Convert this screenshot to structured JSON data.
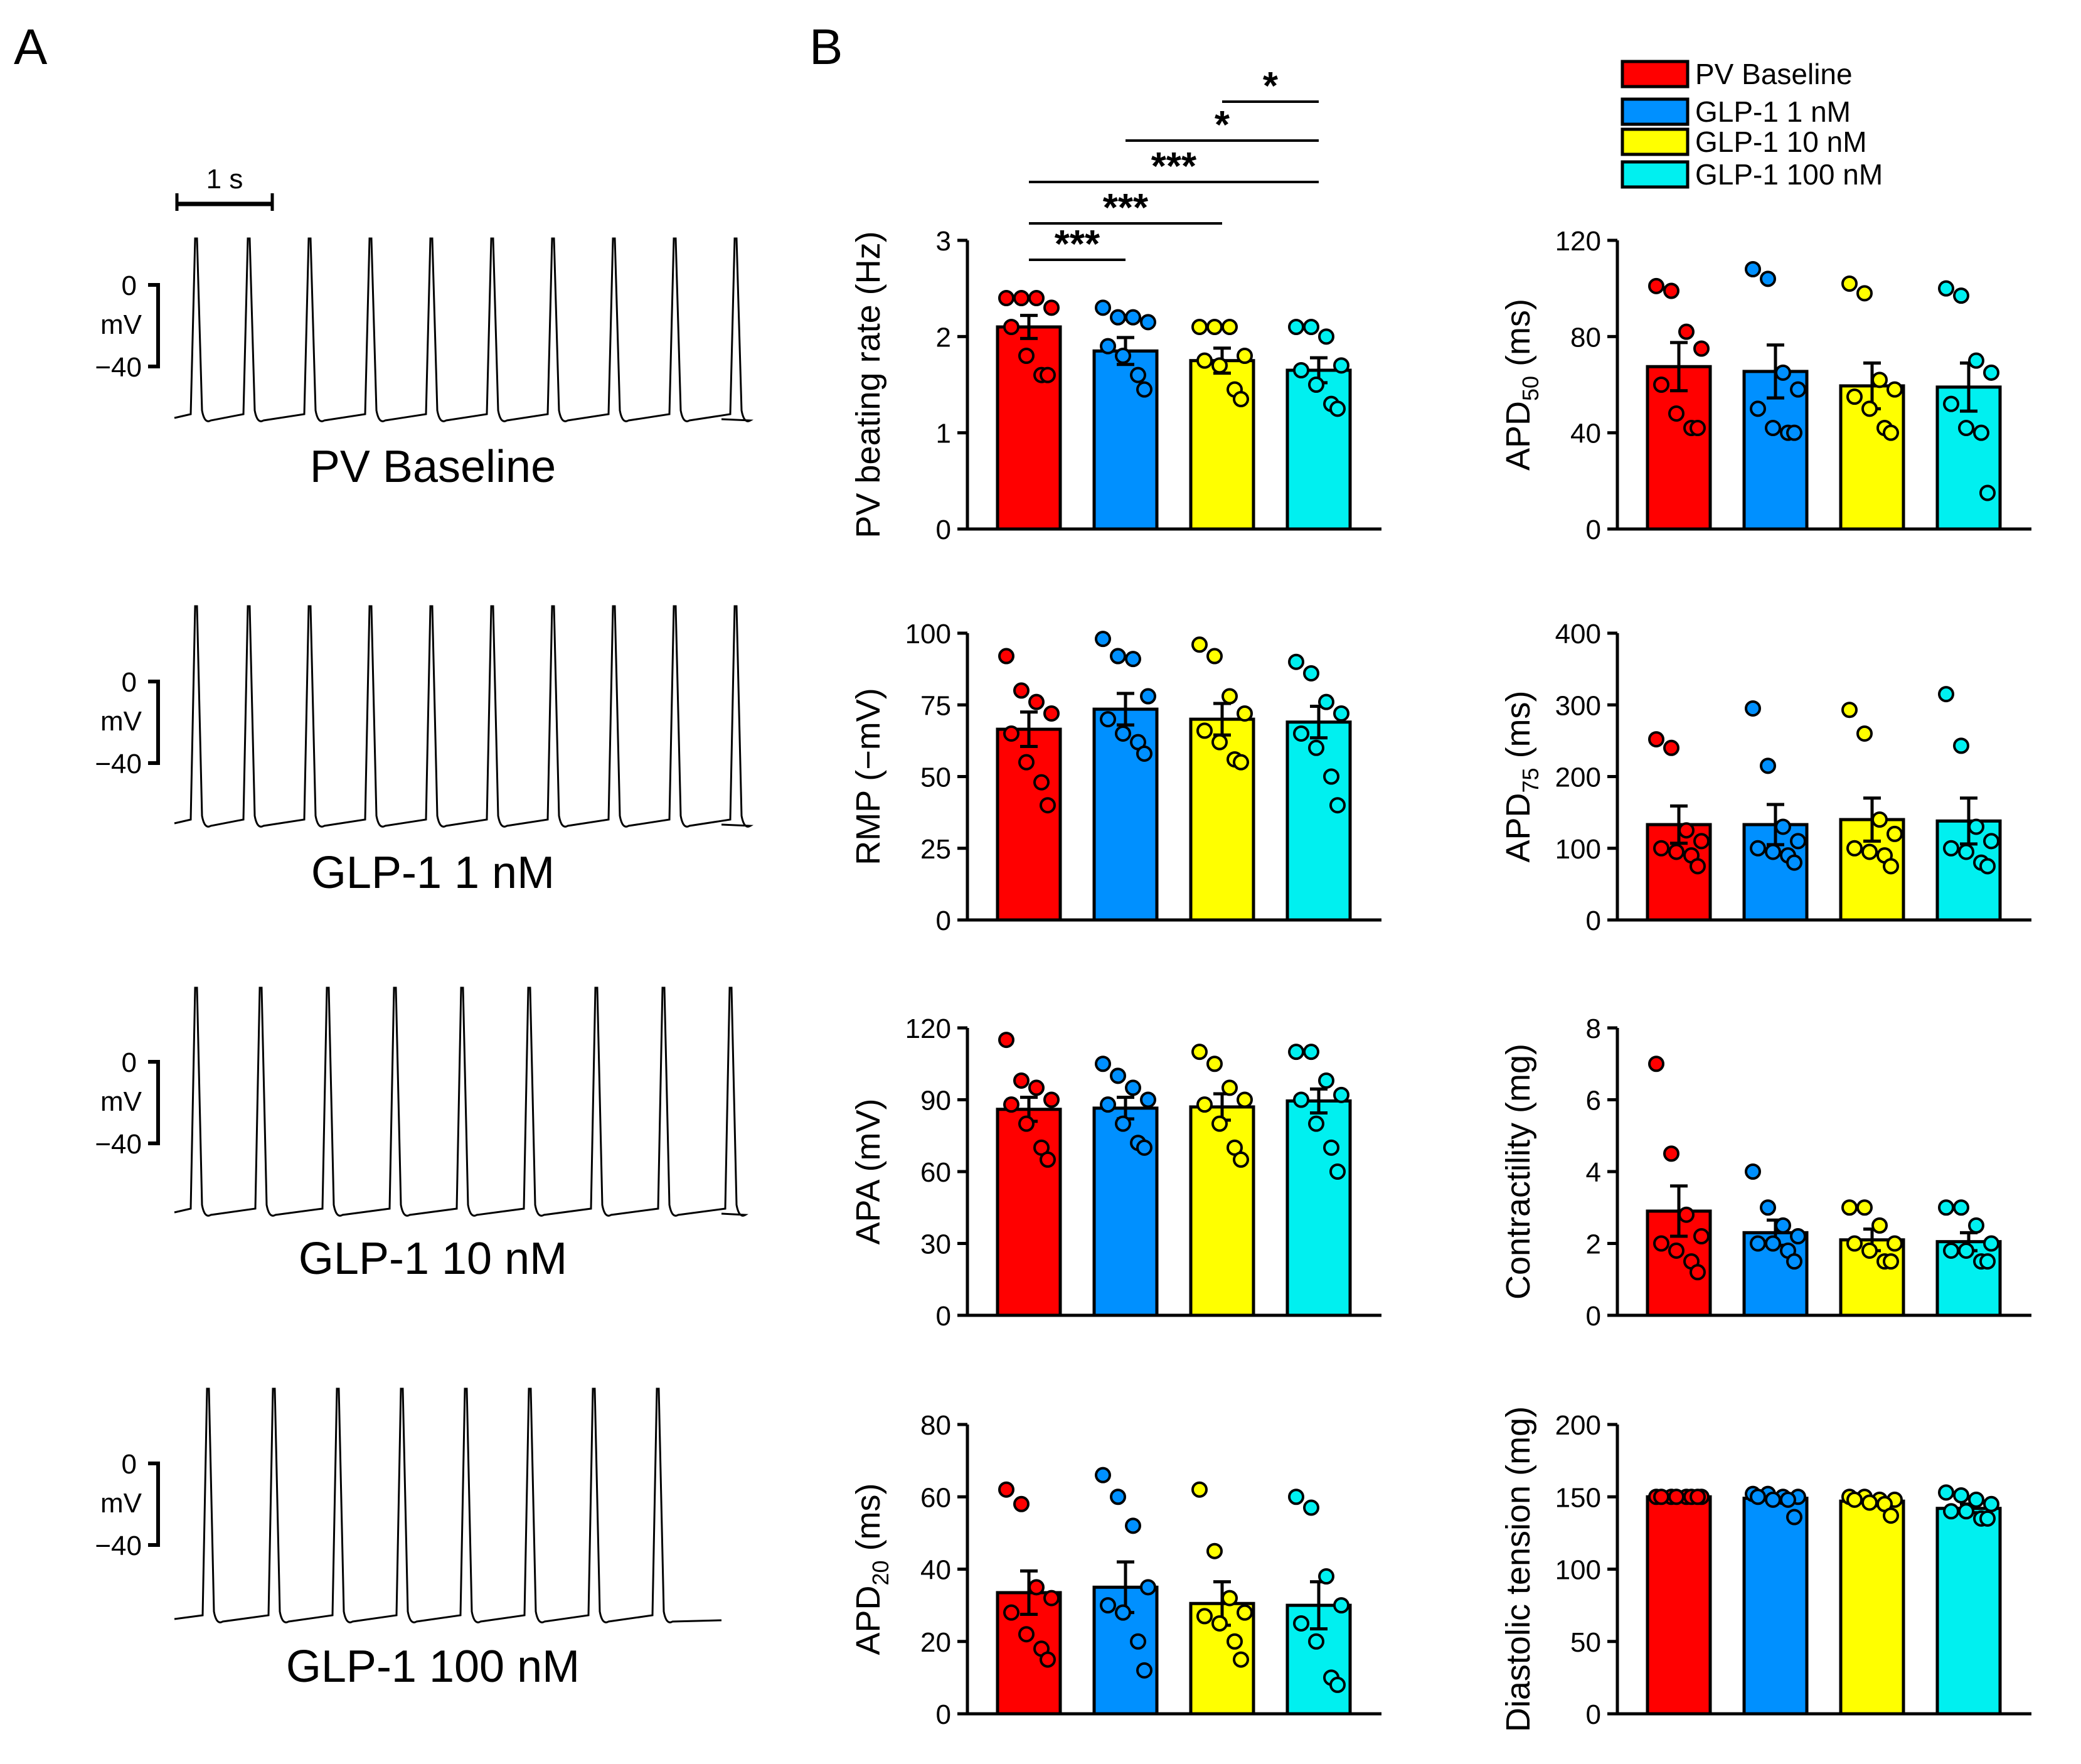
{
  "panels": {
    "a": "A",
    "b": "B"
  },
  "time_scale": "1 s",
  "mv_scale": {
    "top": "0",
    "unit": "mV",
    "bottom": "−40"
  },
  "groups": [
    "PV Baseline",
    "GLP-1 1 nM",
    "GLP-1 10 nM",
    "GLP-1 100 nM"
  ],
  "colors": [
    "#ff0000",
    "#0090ff",
    "#ffff00",
    "#00f0f0"
  ],
  "traces": [
    {
      "label": "PV Baseline",
      "spikes": 10
    },
    {
      "label": "GLP-1 1 nM",
      "spikes": 10
    },
    {
      "label": "GLP-1 10 nM",
      "spikes": 9
    },
    {
      "label": "GLP-1 100 nM",
      "spikes": 8
    }
  ],
  "significance": [
    {
      "from": 0,
      "to": 1,
      "label": "***"
    },
    {
      "from": 0,
      "to": 2,
      "label": "***"
    },
    {
      "from": 0,
      "to": 3,
      "label": "***"
    },
    {
      "from": 1,
      "to": 3,
      "label": "*"
    },
    {
      "from": 2,
      "to": 3,
      "label": "*"
    }
  ],
  "chart_data": [
    {
      "type": "bar",
      "id": "rate",
      "ylabel_main": "PV beating rate (Hz)",
      "ylabel_sub": "",
      "ylabel_tail": "",
      "ylim": [
        0,
        3
      ],
      "ticks": [
        "0",
        "1",
        "2",
        "3"
      ],
      "categories": [
        "PV Baseline",
        "GLP-1 1 nM",
        "GLP-1 10 nM",
        "GLP-1 100 nM"
      ],
      "values": [
        2.1,
        1.85,
        1.75,
        1.65
      ],
      "sem": [
        0.12,
        0.14,
        0.13,
        0.13
      ],
      "points": [
        [
          2.4,
          2.4,
          2.4,
          2.3,
          2.1,
          1.8,
          1.6,
          1.6
        ],
        [
          2.3,
          2.2,
          2.2,
          2.15,
          1.9,
          1.8,
          1.6,
          1.45
        ],
        [
          2.1,
          2.1,
          2.1,
          1.8,
          1.75,
          1.7,
          1.45,
          1.35
        ],
        [
          2.1,
          2.1,
          2.0,
          1.7,
          1.65,
          1.5,
          1.3,
          1.25
        ]
      ]
    },
    {
      "type": "bar",
      "id": "apd50",
      "ylabel_main": "APD",
      "ylabel_sub": "50",
      "ylabel_tail": " (ms)",
      "ylim": [
        0,
        120
      ],
      "ticks": [
        "0",
        "40",
        "80",
        "120"
      ],
      "categories": [
        "PV Baseline",
        "GLP-1 1 nM",
        "GLP-1 10 nM",
        "GLP-1 100 nM"
      ],
      "values": [
        67.5,
        65.5,
        59.5,
        59
      ],
      "sem": [
        10,
        11,
        9.5,
        10
      ],
      "points": [
        [
          101,
          99,
          82,
          75,
          60,
          48,
          42,
          42
        ],
        [
          108,
          104,
          65,
          58,
          50,
          42,
          40,
          40
        ],
        [
          102,
          98,
          62,
          58,
          55,
          50,
          42,
          40
        ],
        [
          100,
          97,
          70,
          65,
          52,
          42,
          40,
          15
        ]
      ]
    },
    {
      "type": "bar",
      "id": "rmp",
      "ylabel_main": "RMP (−mV)",
      "ylabel_sub": "",
      "ylabel_tail": "",
      "ylim": [
        0,
        100
      ],
      "ticks": [
        "0",
        "25",
        "50",
        "75",
        "100"
      ],
      "categories": [
        "PV Baseline",
        "GLP-1 1 nM",
        "GLP-1 10 nM",
        "GLP-1 100 nM"
      ],
      "values": [
        66.5,
        73.5,
        70,
        69
      ],
      "sem": [
        6,
        5.5,
        5.5,
        5.5
      ],
      "points": [
        [
          92,
          80,
          76,
          72,
          65,
          55,
          48,
          40
        ],
        [
          98,
          92,
          91,
          78,
          70,
          65,
          62,
          58
        ],
        [
          96,
          92,
          78,
          72,
          66,
          62,
          56,
          55
        ],
        [
          90,
          86,
          76,
          72,
          65,
          60,
          50,
          40
        ]
      ]
    },
    {
      "type": "bar",
      "id": "apd75",
      "ylabel_main": "APD",
      "ylabel_sub": "75",
      "ylabel_tail": " (ms)",
      "ylim": [
        0,
        400
      ],
      "ticks": [
        "0",
        "100",
        "200",
        "300",
        "400"
      ],
      "categories": [
        "PV Baseline",
        "GLP-1 1 nM",
        "GLP-1 10 nM",
        "GLP-1 100 nM"
      ],
      "values": [
        133,
        133,
        140,
        138
      ],
      "sem": [
        26,
        28,
        30,
        32
      ],
      "points": [
        [
          252,
          240,
          125,
          110,
          100,
          95,
          90,
          75
        ],
        [
          295,
          215,
          130,
          110,
          100,
          95,
          90,
          80
        ],
        [
          293,
          260,
          140,
          120,
          100,
          95,
          90,
          75
        ],
        [
          315,
          243,
          130,
          110,
          100,
          95,
          80,
          75
        ]
      ]
    },
    {
      "type": "bar",
      "id": "apa",
      "ylabel_main": "APA (mV)",
      "ylabel_sub": "",
      "ylabel_tail": "",
      "ylim": [
        0,
        120
      ],
      "ticks": [
        "0",
        "30",
        "60",
        "90",
        "120"
      ],
      "categories": [
        "PV Baseline",
        "GLP-1 1 nM",
        "GLP-1 10 nM",
        "GLP-1 100 nM"
      ],
      "values": [
        86,
        86.5,
        87,
        89.5
      ],
      "sem": [
        5,
        4.5,
        5.5,
        5
      ],
      "points": [
        [
          115,
          98,
          95,
          90,
          88,
          80,
          70,
          65
        ],
        [
          105,
          100,
          95,
          90,
          88,
          80,
          72,
          70
        ],
        [
          110,
          105,
          95,
          90,
          88,
          80,
          70,
          65
        ],
        [
          110,
          110,
          98,
          92,
          90,
          80,
          70,
          60
        ]
      ]
    },
    {
      "type": "bar",
      "id": "contractility",
      "ylabel_main": "Contractility (mg)",
      "ylabel_sub": "",
      "ylabel_tail": "",
      "ylim": [
        0,
        8
      ],
      "ticks": [
        "0",
        "2",
        "4",
        "6",
        "8"
      ],
      "categories": [
        "PV Baseline",
        "GLP-1 1 nM",
        "GLP-1 10 nM",
        "GLP-1 100 nM"
      ],
      "values": [
        2.9,
        2.3,
        2.1,
        2.05
      ],
      "sem": [
        0.7,
        0.35,
        0.3,
        0.25
      ],
      "points": [
        [
          7.0,
          4.5,
          2.8,
          2.2,
          2.0,
          1.8,
          1.5,
          1.2
        ],
        [
          4.0,
          3.0,
          2.5,
          2.2,
          2.0,
          2.0,
          1.8,
          1.5
        ],
        [
          3.0,
          3.0,
          2.5,
          2.0,
          2.0,
          1.8,
          1.5,
          1.5
        ],
        [
          3.0,
          3.0,
          2.5,
          2.0,
          1.8,
          1.8,
          1.5,
          1.5
        ]
      ]
    },
    {
      "type": "bar",
      "id": "apd20",
      "ylabel_main": "APD",
      "ylabel_sub": "20",
      "ylabel_tail": " (ms)",
      "ylim": [
        0,
        80
      ],
      "ticks": [
        "0",
        "20",
        "40",
        "60",
        "80"
      ],
      "categories": [
        "PV Baseline",
        "GLP-1 1 nM",
        "GLP-1 10 nM",
        "GLP-1 100 nM"
      ],
      "values": [
        33.5,
        35,
        30.5,
        30
      ],
      "sem": [
        6,
        7,
        6,
        6.5
      ],
      "points": [
        [
          62,
          58,
          35,
          32,
          28,
          22,
          18,
          15
        ],
        [
          66,
          60,
          52,
          35,
          30,
          28,
          20,
          12
        ],
        [
          62,
          45,
          32,
          28,
          27,
          25,
          20,
          15
        ],
        [
          60,
          57,
          38,
          30,
          25,
          20,
          10,
          8
        ]
      ]
    },
    {
      "type": "bar",
      "id": "tension",
      "ylabel_main": "Diastolic tension (mg)",
      "ylabel_sub": "",
      "ylabel_tail": "",
      "ylim": [
        0,
        200
      ],
      "ticks": [
        "0",
        "50",
        "100",
        "150",
        "200"
      ],
      "categories": [
        "PV Baseline",
        "GLP-1 1 nM",
        "GLP-1 10 nM",
        "GLP-1 100 nM"
      ],
      "values": [
        150,
        149,
        147,
        142
      ],
      "sem": [
        0.5,
        1.5,
        2,
        3
      ],
      "points": [
        [
          150,
          150,
          150,
          150,
          150,
          150,
          150,
          150
        ],
        [
          152,
          152,
          150,
          150,
          150,
          148,
          148,
          136
        ],
        [
          150,
          150,
          148,
          148,
          148,
          146,
          145,
          137
        ],
        [
          153,
          151,
          148,
          145,
          140,
          140,
          135,
          135
        ]
      ]
    }
  ]
}
